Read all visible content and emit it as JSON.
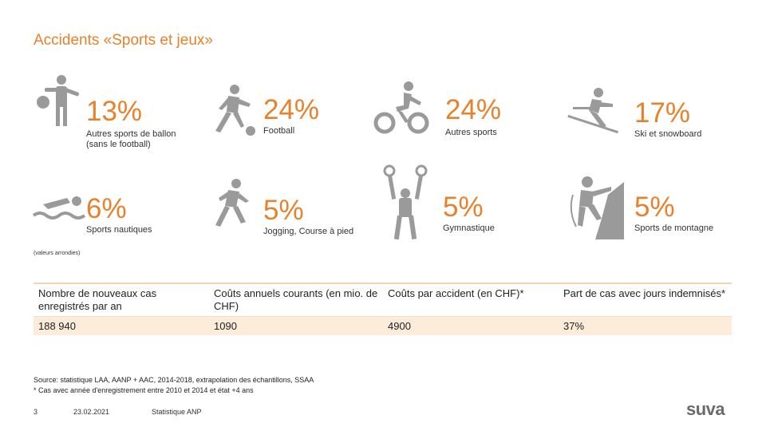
{
  "title": "Accidents «Sports et jeux»",
  "colors": {
    "accent": "#e8812b",
    "icon": "#9a9a9a",
    "table_fill": "#fcecd9"
  },
  "stats": [
    {
      "value": "13%",
      "label": "Autres sports de ballon\n(sans le football)",
      "icon": "ball-sports-icon"
    },
    {
      "value": "24%",
      "label": "Football",
      "icon": "football-icon"
    },
    {
      "value": "24%",
      "label": "Autres sports",
      "icon": "cyclist-icon"
    },
    {
      "value": "17%",
      "label": "Ski et snowboard",
      "icon": "skier-icon"
    },
    {
      "value": "6%",
      "label": "Sports nautiques",
      "icon": "swimmer-icon"
    },
    {
      "value": "5%",
      "label": "Jogging, Course à pied",
      "icon": "runner-icon"
    },
    {
      "value": "5%",
      "label": "Gymnastique",
      "icon": "gymnast-rings-icon"
    },
    {
      "value": "5%",
      "label": "Sports de montagne",
      "icon": "climber-icon"
    }
  ],
  "note": "(valeurs arrondies)",
  "table": {
    "headers": [
      "Nombre de nouveaux cas enregistrés par an",
      "Coûts annuels courants (en mio. de CHF)",
      "Coûts par accident (en CHF)*",
      "Part de cas avec jours indemnisés*"
    ],
    "values": [
      "188 940",
      "1090",
      "4900",
      "37%"
    ]
  },
  "source": {
    "line1": "Source: statistique LAA, AANP + AAC, 2014-2018, extrapolation des échantillons, SSAA",
    "line2": "* Cas avec année d'enregistrement entre 2010 et 2014 et état +4 ans"
  },
  "footer": {
    "page": "3",
    "date": "23.02.2021",
    "name": "Statistique ANP"
  },
  "logo": "suva"
}
